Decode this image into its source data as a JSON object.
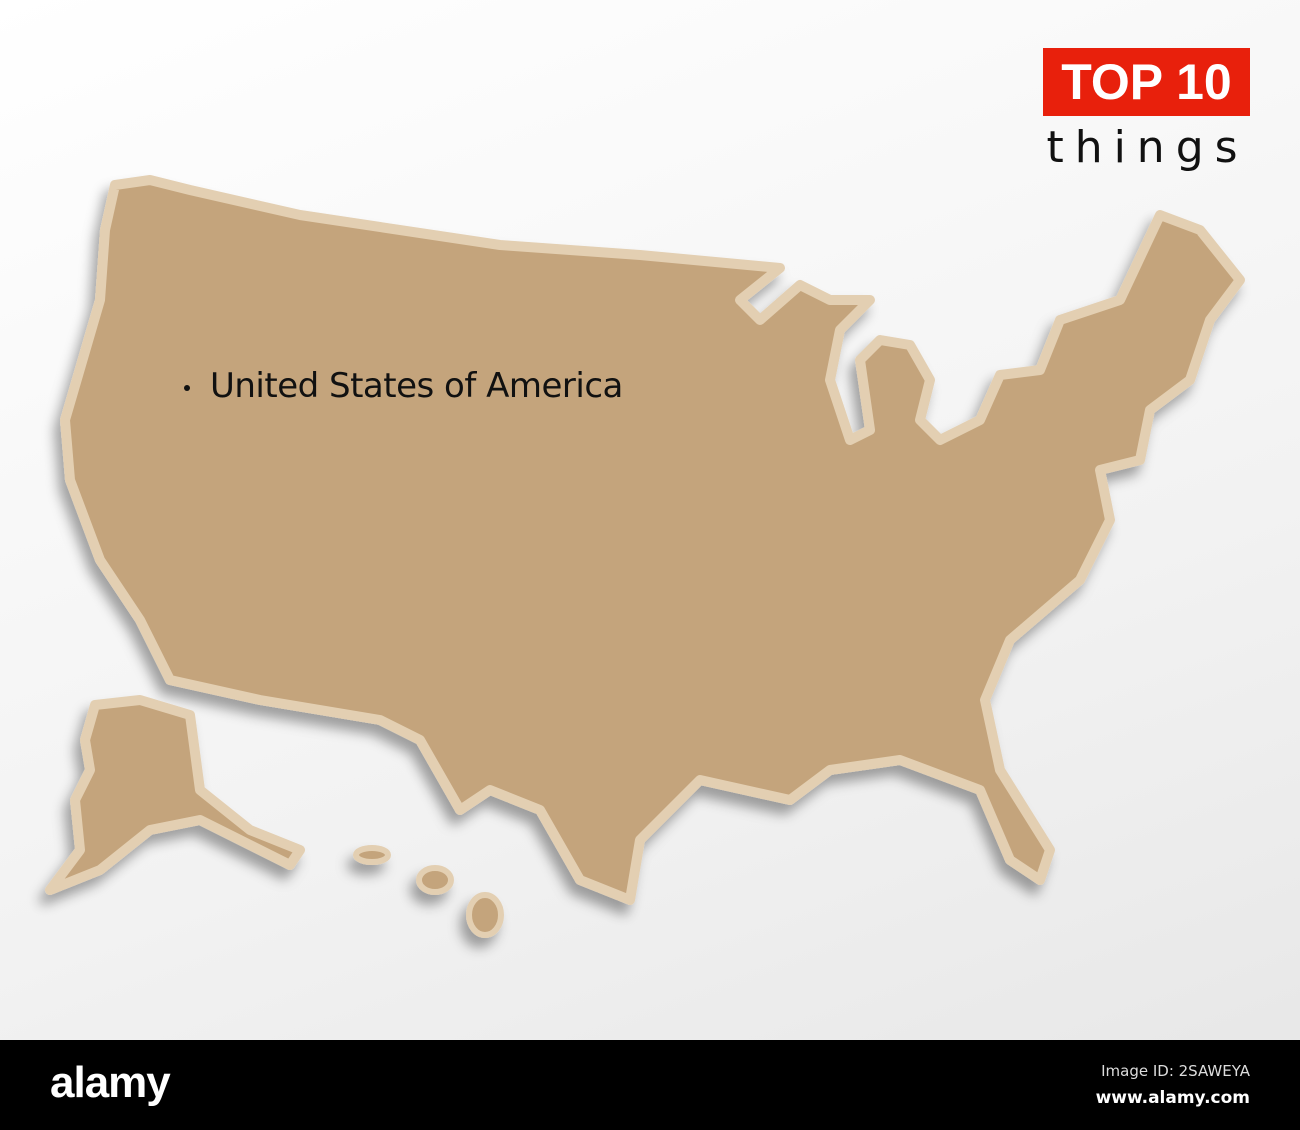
{
  "map": {
    "country_label": "United States of America",
    "fill_color": "#c4a47c",
    "border_color": "#e3cfb2"
  },
  "badge": {
    "title": "TOP 10",
    "subtitle": "things",
    "color": "#e8200c"
  },
  "footer": {
    "logo": "alamy",
    "image_id": "Image ID: 2SAWEYA",
    "site": "www.alamy.com"
  }
}
